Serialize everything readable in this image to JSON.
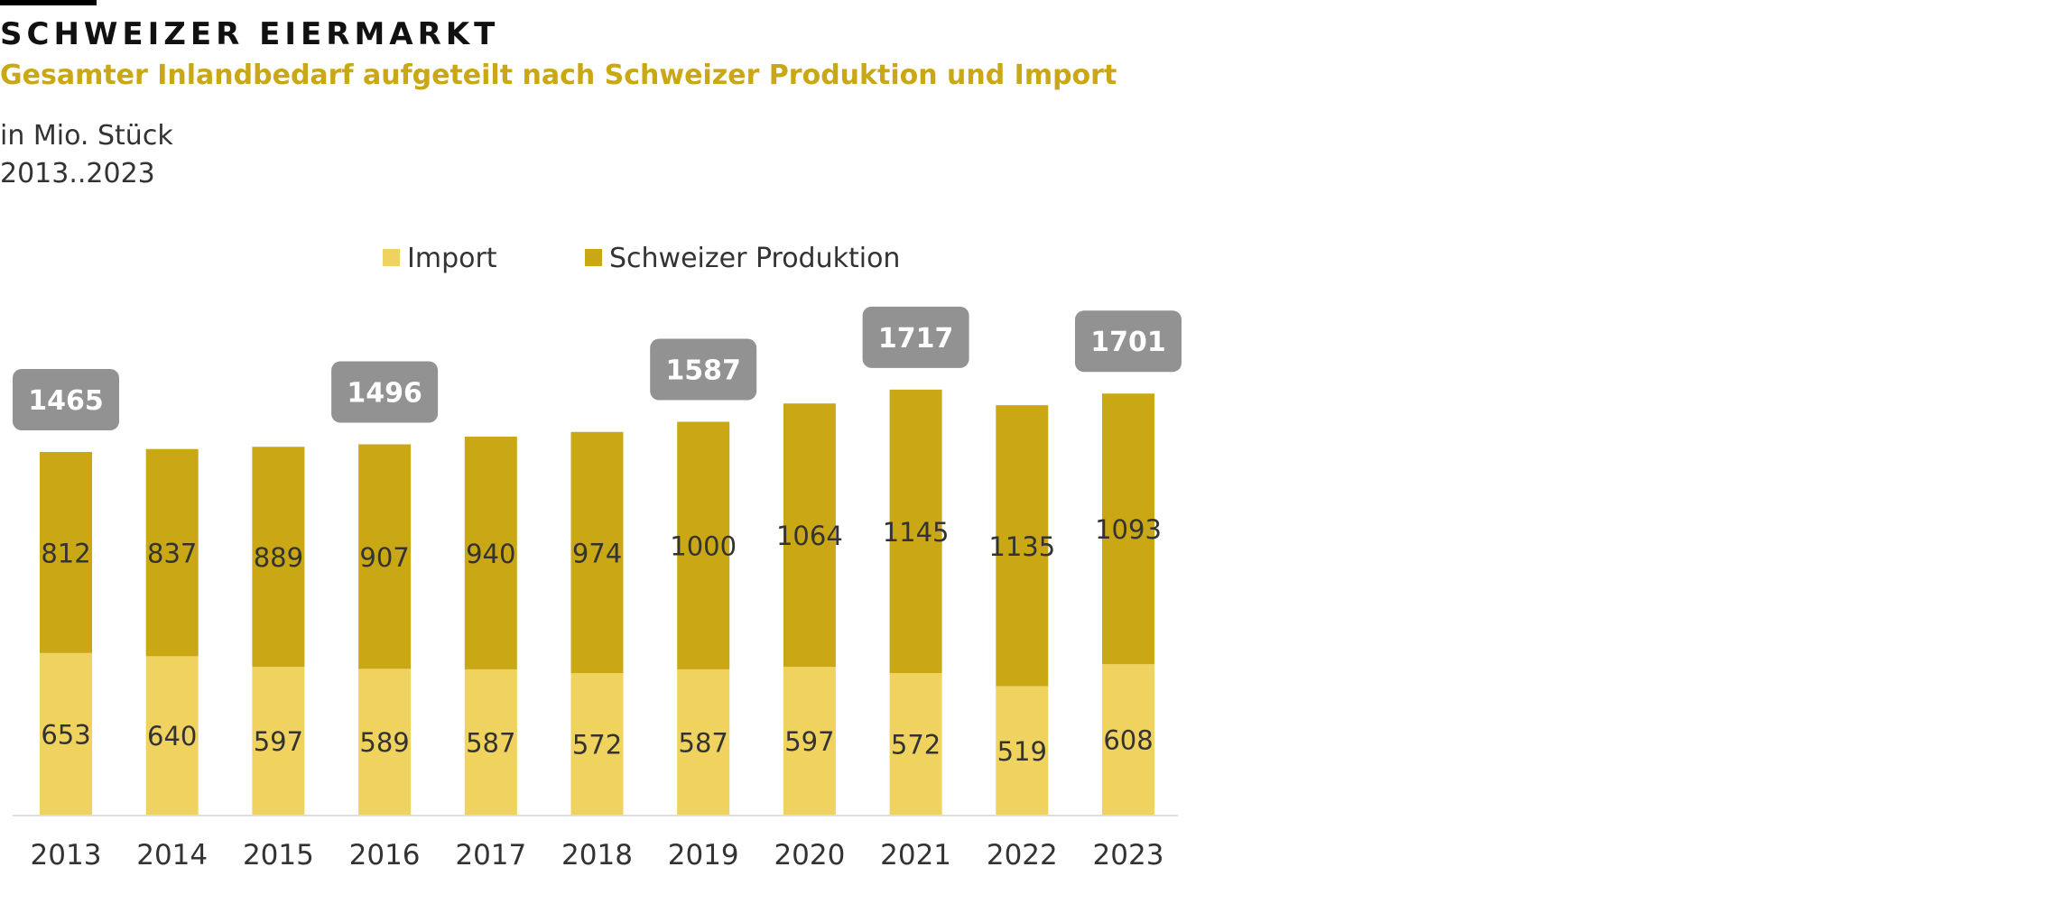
{
  "header": {
    "title": "SCHWEIZER EIERMARKT",
    "subtitle": "Gesamter Inlandbedarf aufgeteilt nach Schweizer Produktion und Import",
    "unit": "in Mio. Stück",
    "range": "2013..2023"
  },
  "colors": {
    "import": "#EFD35E",
    "produktion": "#C9A715",
    "subtitle": "#C9A715",
    "total_badge": "#929292",
    "axis": "#DDDDDD"
  },
  "chart_data": {
    "type": "bar",
    "stacked": true,
    "categories": [
      "2013",
      "2014",
      "2015",
      "2016",
      "2017",
      "2018",
      "2019",
      "2020",
      "2021",
      "2022",
      "2023"
    ],
    "series": [
      {
        "name": "Import",
        "values": [
          653,
          640,
          597,
          589,
          587,
          572,
          587,
          597,
          572,
          519,
          608
        ]
      },
      {
        "name": "Schweizer Produktion",
        "values": [
          812,
          837,
          889,
          907,
          940,
          974,
          1000,
          1064,
          1145,
          1135,
          1093
        ]
      }
    ],
    "total_labels": [
      {
        "category": "2013",
        "value": "1465"
      },
      {
        "category": "2016",
        "value": "1496"
      },
      {
        "category": "2019",
        "value": "1587"
      },
      {
        "category": "2021",
        "value": "1717"
      },
      {
        "category": "2023",
        "value": "1701"
      }
    ],
    "legend": {
      "position": "top",
      "entries": [
        "Import",
        "Schweizer Produktion"
      ]
    },
    "grid": false
  }
}
